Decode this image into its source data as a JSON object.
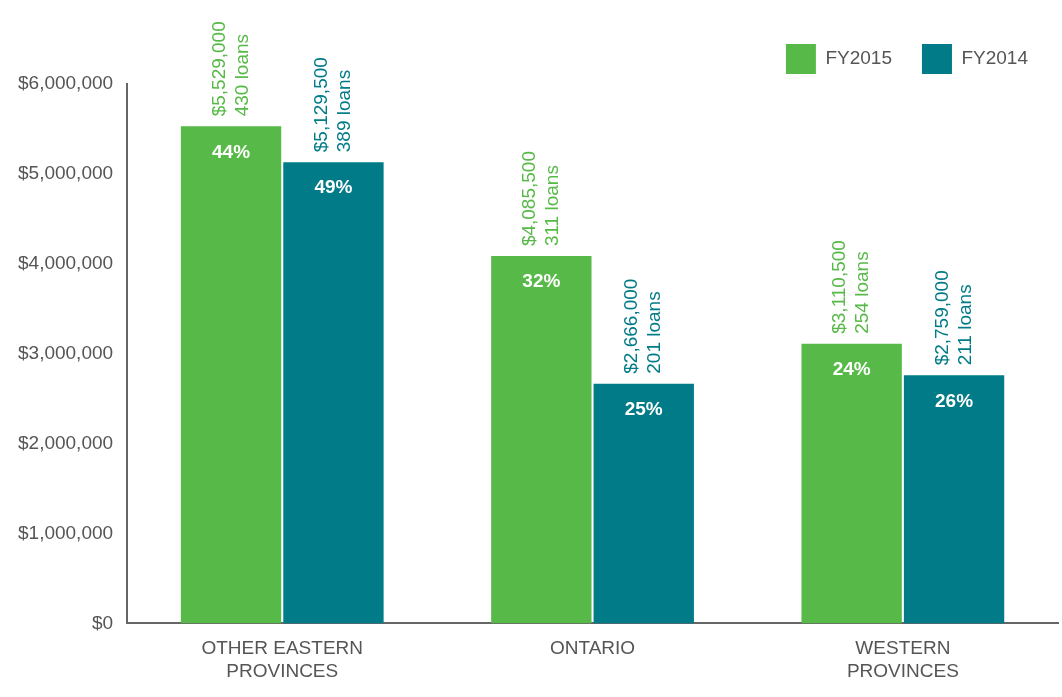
{
  "chart_data": {
    "type": "bar",
    "categories": [
      "OTHER EASTERN PROVINCES",
      "ONTARIO",
      "WESTERN PROVINCES"
    ],
    "series": [
      {
        "name": "FY2015",
        "color": "#57b947",
        "values": [
          5529000,
          4085500,
          3110500
        ],
        "value_labels": [
          "$5,529,000\n430 loans",
          "$4,085,500\n311 loans",
          "$3,110,500\n254 loans"
        ]
      },
      {
        "name": "FY2014",
        "color": "#007b87",
        "values": [
          5129500,
          2666000,
          2759000
        ],
        "value_labels": [
          "$5,129,500\n389 loans",
          "$2,666,000\n201 loans",
          "$2,759,000\n211 loans"
        ]
      }
    ],
    "annotations": [
      {
        "text": "44%",
        "x": "OTHER EASTERN PROVINCES",
        "y": 5529000
      },
      {
        "text": "49%",
        "x": "OTHER EASTERN PROVINCES",
        "y": 5129500
      },
      {
        "text": "32%",
        "x": "ONTARIO",
        "y": 4085500
      },
      {
        "text": "25%",
        "x": "ONTARIO",
        "y": 2666000
      },
      {
        "text": "24%",
        "x": "WESTERN PROVINCES",
        "y": 3110500
      },
      {
        "text": "26%",
        "x": "WESTERN PROVINCES",
        "y": 2759000
      }
    ],
    "ylim": [
      0,
      6000000
    ],
    "yticks": [
      {
        "value": 0,
        "label": "$0"
      },
      {
        "value": 1000000,
        "label": "$1,000,000"
      },
      {
        "value": 2000000,
        "label": "$2,000,000"
      },
      {
        "value": 3000000,
        "label": "$3,000,000"
      },
      {
        "value": 4000000,
        "label": "$4,000,000"
      },
      {
        "value": 5000000,
        "label": "$5,000,000"
      },
      {
        "value": 6000000,
        "label": "$6,000,000"
      }
    ],
    "grid": false,
    "legend": "top right"
  }
}
